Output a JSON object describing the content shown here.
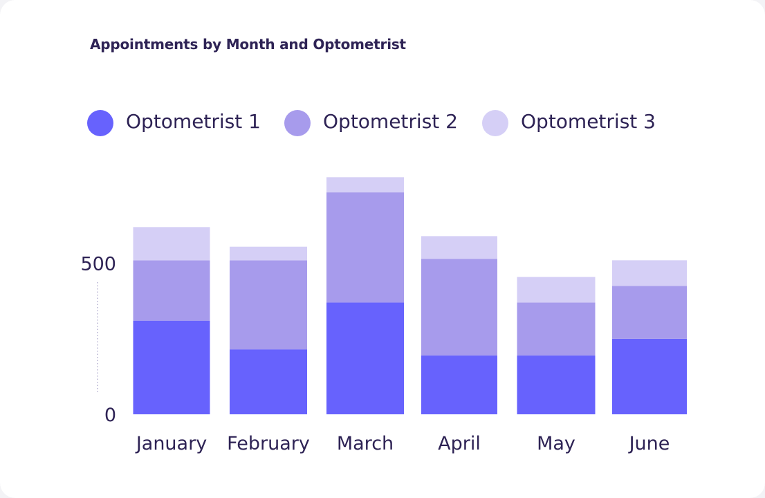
{
  "chart_data": {
    "type": "bar",
    "stacked": true,
    "title": "Appointments by Month and Optometrist",
    "categories": [
      "January",
      "February",
      "March",
      "April",
      "May",
      "June"
    ],
    "series": [
      {
        "name": "Optometrist 1",
        "color": "#6762fd",
        "values": [
          310,
          215,
          370,
          195,
          195,
          250
        ]
      },
      {
        "name": "Optometrist 2",
        "color": "#a79bec",
        "values": [
          200,
          295,
          365,
          320,
          175,
          175
        ]
      },
      {
        "name": "Optometrist 3",
        "color": "#d5cff6",
        "values": [
          110,
          45,
          50,
          75,
          85,
          85
        ]
      }
    ],
    "y_ticks": [
      0,
      500
    ],
    "ylim": [
      0,
      800
    ],
    "legend_position": "top",
    "grid": false
  }
}
